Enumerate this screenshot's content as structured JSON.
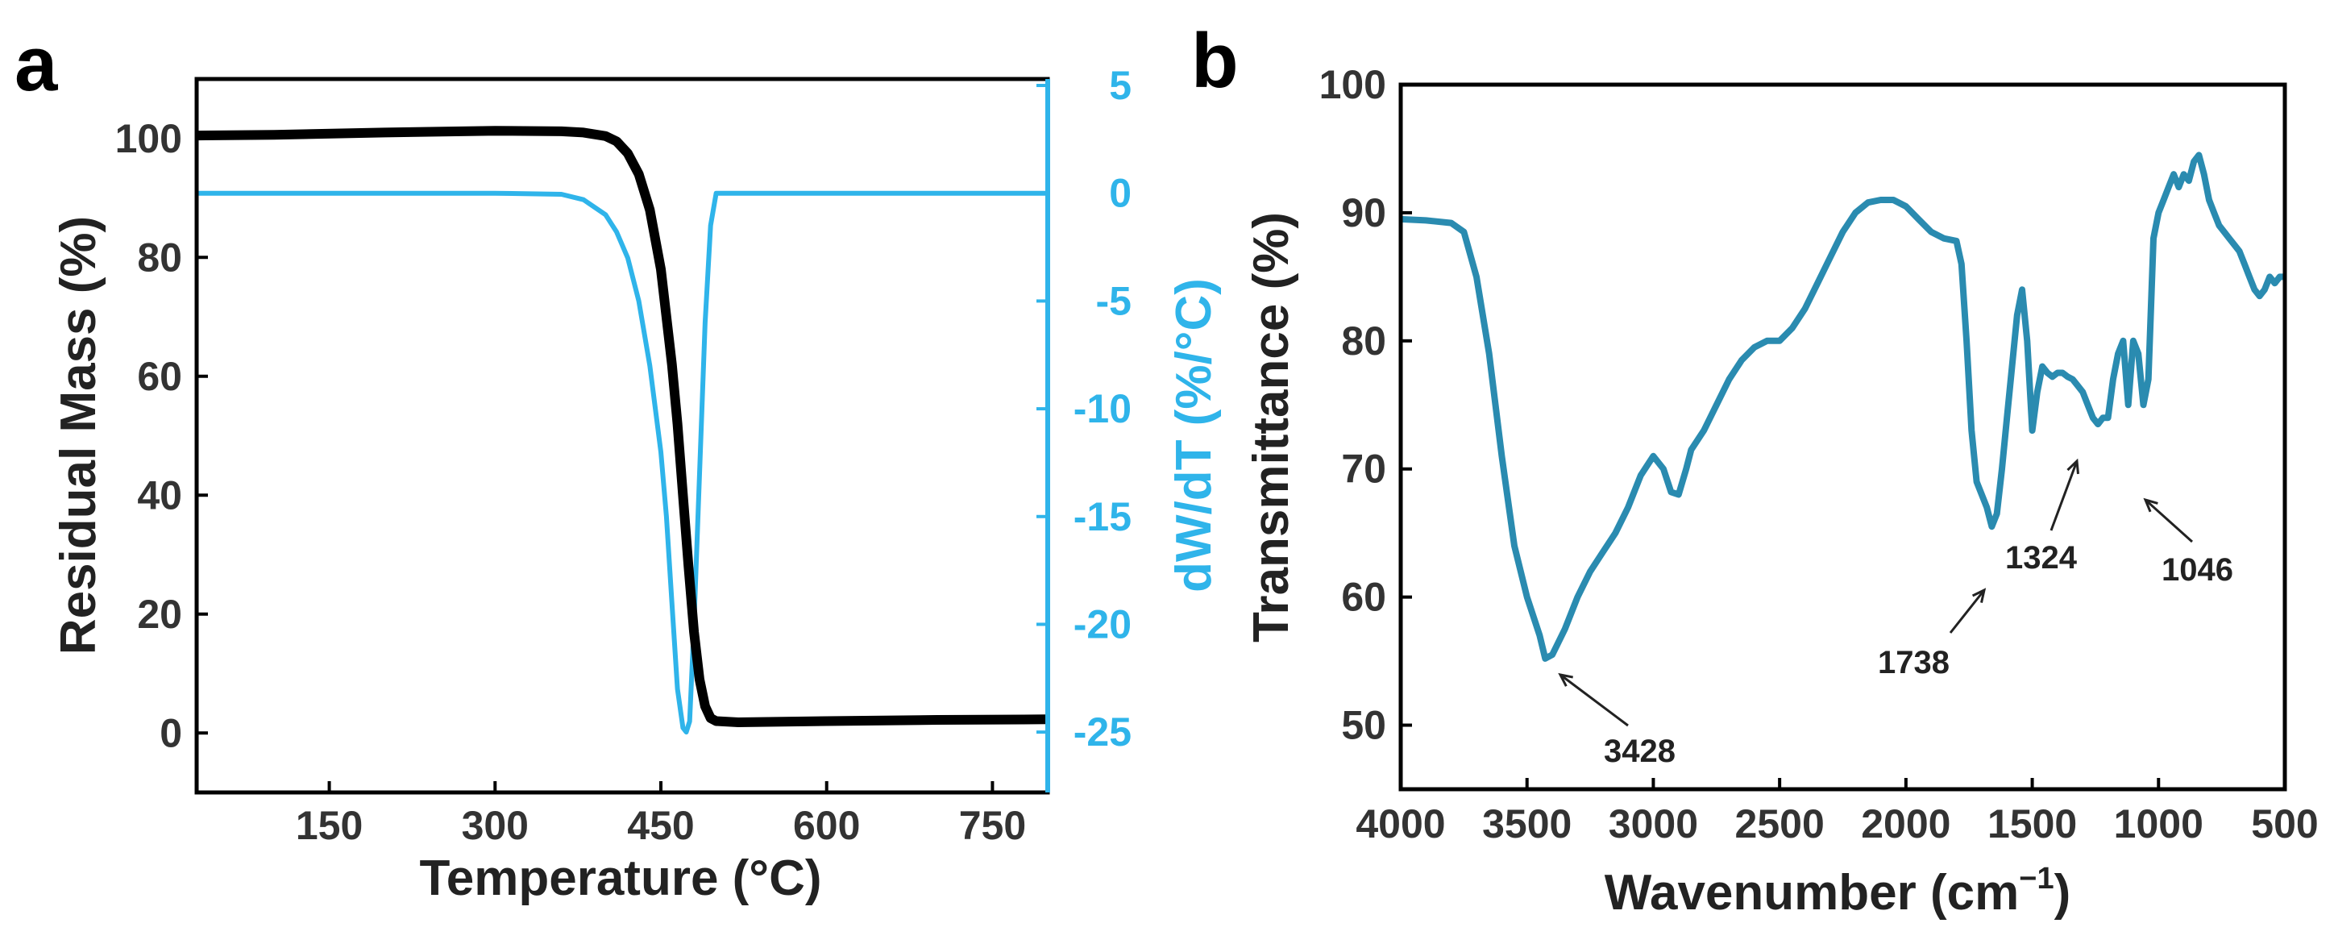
{
  "chart_data": [
    {
      "panel": "a",
      "type": "line",
      "xlabel": "Temperature (°C)",
      "ylabel": "Residual Mass (%)",
      "y2label": "dW/dT (%/°C)",
      "xlim": [
        30,
        800
      ],
      "ylim": [
        -10,
        110
      ],
      "y2lim": [
        -27.8,
        5.3
      ],
      "xticks": [
        150,
        300,
        450,
        600,
        750
      ],
      "yticks": [
        0,
        20,
        40,
        60,
        80,
        100
      ],
      "y2ticks": [
        5,
        0,
        -5,
        -10,
        -15,
        -20,
        -25
      ],
      "colors": {
        "mass": "#000000",
        "dwdt": "#2fb4ea"
      },
      "series": [
        {
          "axis": "left",
          "x": [
            30,
            100,
            200,
            300,
            360,
            380,
            400,
            410,
            420,
            430,
            440,
            450,
            460,
            465,
            470,
            475,
            480,
            485,
            490,
            495,
            500,
            520,
            600,
            700,
            800
          ],
          "values": [
            100.5,
            100.6,
            101,
            101.3,
            101.2,
            101,
            100.4,
            99.5,
            97.5,
            94,
            88,
            78,
            62,
            52,
            40,
            28,
            17,
            9,
            4.5,
            2.5,
            2,
            1.8,
            2,
            2.2,
            2.3
          ]
        },
        {
          "axis": "right",
          "x": [
            30,
            100,
            200,
            300,
            360,
            380,
            400,
            410,
            420,
            430,
            440,
            450,
            455,
            460,
            465,
            470,
            473,
            476,
            480,
            485,
            490,
            495,
            500,
            510,
            600,
            700,
            800
          ],
          "values": [
            0,
            0,
            0,
            0,
            -0.05,
            -0.3,
            -1,
            -1.8,
            -3,
            -5,
            -8,
            -12,
            -15,
            -19,
            -23,
            -24.8,
            -25,
            -24.5,
            -20,
            -13,
            -6,
            -1.5,
            0,
            0,
            0,
            0,
            0
          ]
        }
      ]
    },
    {
      "panel": "b",
      "type": "line",
      "xlabel": "Wavenumber (cm⁻¹)",
      "ylabel": "Transmittance (%)",
      "xlim": [
        4000,
        500
      ],
      "ylim": [
        45,
        100
      ],
      "xticks": [
        4000,
        3500,
        3000,
        2500,
        2000,
        1500,
        1000,
        500
      ],
      "yticks": [
        50,
        60,
        70,
        80,
        90,
        100
      ],
      "color": "#2a8bb0",
      "annotations": [
        "3428",
        "1738",
        "1324",
        "1046"
      ],
      "series": [
        {
          "x": [
            4000,
            3900,
            3800,
            3750,
            3700,
            3650,
            3600,
            3550,
            3500,
            3450,
            3428,
            3400,
            3350,
            3300,
            3250,
            3200,
            3150,
            3100,
            3050,
            3000,
            2960,
            2930,
            2900,
            2870,
            2850,
            2800,
            2750,
            2700,
            2650,
            2600,
            2550,
            2500,
            2450,
            2400,
            2350,
            2300,
            2250,
            2200,
            2150,
            2100,
            2050,
            2000,
            1950,
            1900,
            1850,
            1800,
            1780,
            1760,
            1740,
            1720,
            1700,
            1680,
            1660,
            1640,
            1620,
            1600,
            1580,
            1560,
            1540,
            1520,
            1500,
            1480,
            1460,
            1440,
            1420,
            1400,
            1380,
            1360,
            1340,
            1320,
            1300,
            1280,
            1260,
            1240,
            1220,
            1200,
            1180,
            1160,
            1140,
            1120,
            1100,
            1080,
            1060,
            1040,
            1020,
            1000,
            980,
            960,
            940,
            920,
            900,
            880,
            860,
            840,
            820,
            800,
            780,
            760,
            740,
            720,
            700,
            680,
            660,
            640,
            620,
            600,
            580,
            560,
            540,
            520,
            500
          ],
          "values": [
            89.5,
            89.4,
            89.2,
            88.5,
            85,
            79,
            71,
            64,
            60,
            57,
            55.2,
            55.5,
            57.5,
            60,
            62,
            63.5,
            65,
            67,
            69.5,
            71,
            70,
            68.2,
            68,
            70,
            71.5,
            73,
            75,
            77,
            78.5,
            79.5,
            80,
            80,
            81,
            82.5,
            84.5,
            86.5,
            88.5,
            90,
            90.8,
            91,
            91,
            90.5,
            89.5,
            88.5,
            88,
            87.8,
            86,
            80,
            73,
            69,
            68,
            67,
            65.5,
            66.5,
            70,
            74,
            78,
            82,
            84,
            80,
            73,
            76,
            78,
            77.5,
            77.2,
            77.5,
            77.5,
            77.2,
            77,
            76.5,
            76,
            75,
            74,
            73.5,
            74,
            74,
            77,
            79,
            80,
            75,
            80,
            79,
            75,
            77,
            88,
            90,
            91,
            92,
            93,
            92,
            93,
            92.5,
            94,
            94.5,
            93,
            91,
            90,
            89,
            88.5,
            88,
            87.5,
            87,
            86,
            85,
            84,
            83.5,
            84,
            85,
            84.5,
            85,
            85
          ]
        }
      ]
    }
  ],
  "panels": {
    "a": {
      "letter": "a",
      "xlabel": "Temperature (°C)",
      "ylabel": "Residual Mass (%)",
      "y2label": "dW/dT (%/°C)",
      "xtick_labels": [
        "150",
        "300",
        "450",
        "600",
        "750"
      ],
      "ytick_labels": [
        "0",
        "20",
        "40",
        "60",
        "80",
        "100"
      ],
      "y2tick_labels": [
        "5",
        "0",
        "-5",
        "-10",
        "-15",
        "-20",
        "-25"
      ]
    },
    "b": {
      "letter": "b",
      "xlabel_main": "Wavenumber (cm",
      "xlabel_sup": "−1",
      "xlabel_close": ")",
      "ylabel": "Transmittance (%)",
      "xtick_labels": [
        "4000",
        "3500",
        "3000",
        "2500",
        "2000",
        "1500",
        "1000",
        "500"
      ],
      "ytick_labels": [
        "50",
        "60",
        "70",
        "80",
        "90",
        "100"
      ],
      "annotations": [
        "3428",
        "1738",
        "1324",
        "1046"
      ]
    }
  }
}
